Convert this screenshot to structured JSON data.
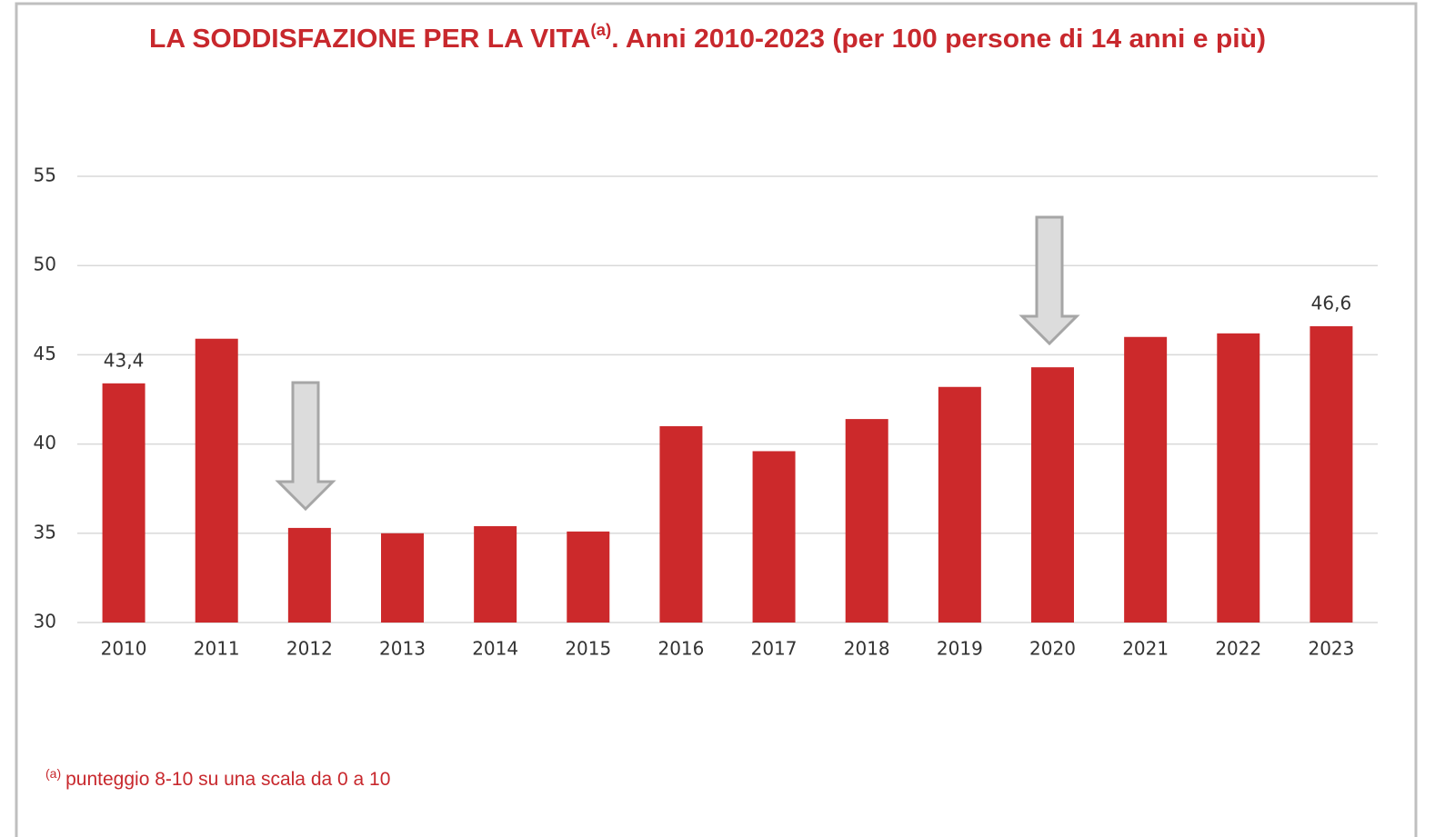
{
  "chart_data": {
    "type": "bar",
    "title": "LA SODDISFAZIONE PER LA VITA",
    "title_note_mark": "(a)",
    "title_rest": ". Anni 2010-2023 (per 100 persone di 14 anni e più)",
    "footnote_mark": "(a)",
    "footnote": "punteggio 8-10 su una scala da 0 a 10",
    "categories": [
      "2010",
      "2011",
      "2012",
      "2013",
      "2014",
      "2015",
      "2016",
      "2017",
      "2018",
      "2019",
      "2020",
      "2021",
      "2022",
      "2023"
    ],
    "values": [
      43.4,
      45.9,
      35.3,
      35.0,
      35.4,
      35.1,
      41.0,
      39.6,
      41.4,
      43.2,
      44.3,
      46.0,
      46.2,
      46.6
    ],
    "value_labels": [
      "43,4",
      null,
      null,
      null,
      null,
      null,
      null,
      null,
      null,
      null,
      null,
      null,
      null,
      "46,6"
    ],
    "color": "#cc292b",
    "ylim": [
      30,
      55
    ],
    "yticks": [
      30,
      35,
      40,
      45,
      50,
      55
    ],
    "grid": true
  }
}
